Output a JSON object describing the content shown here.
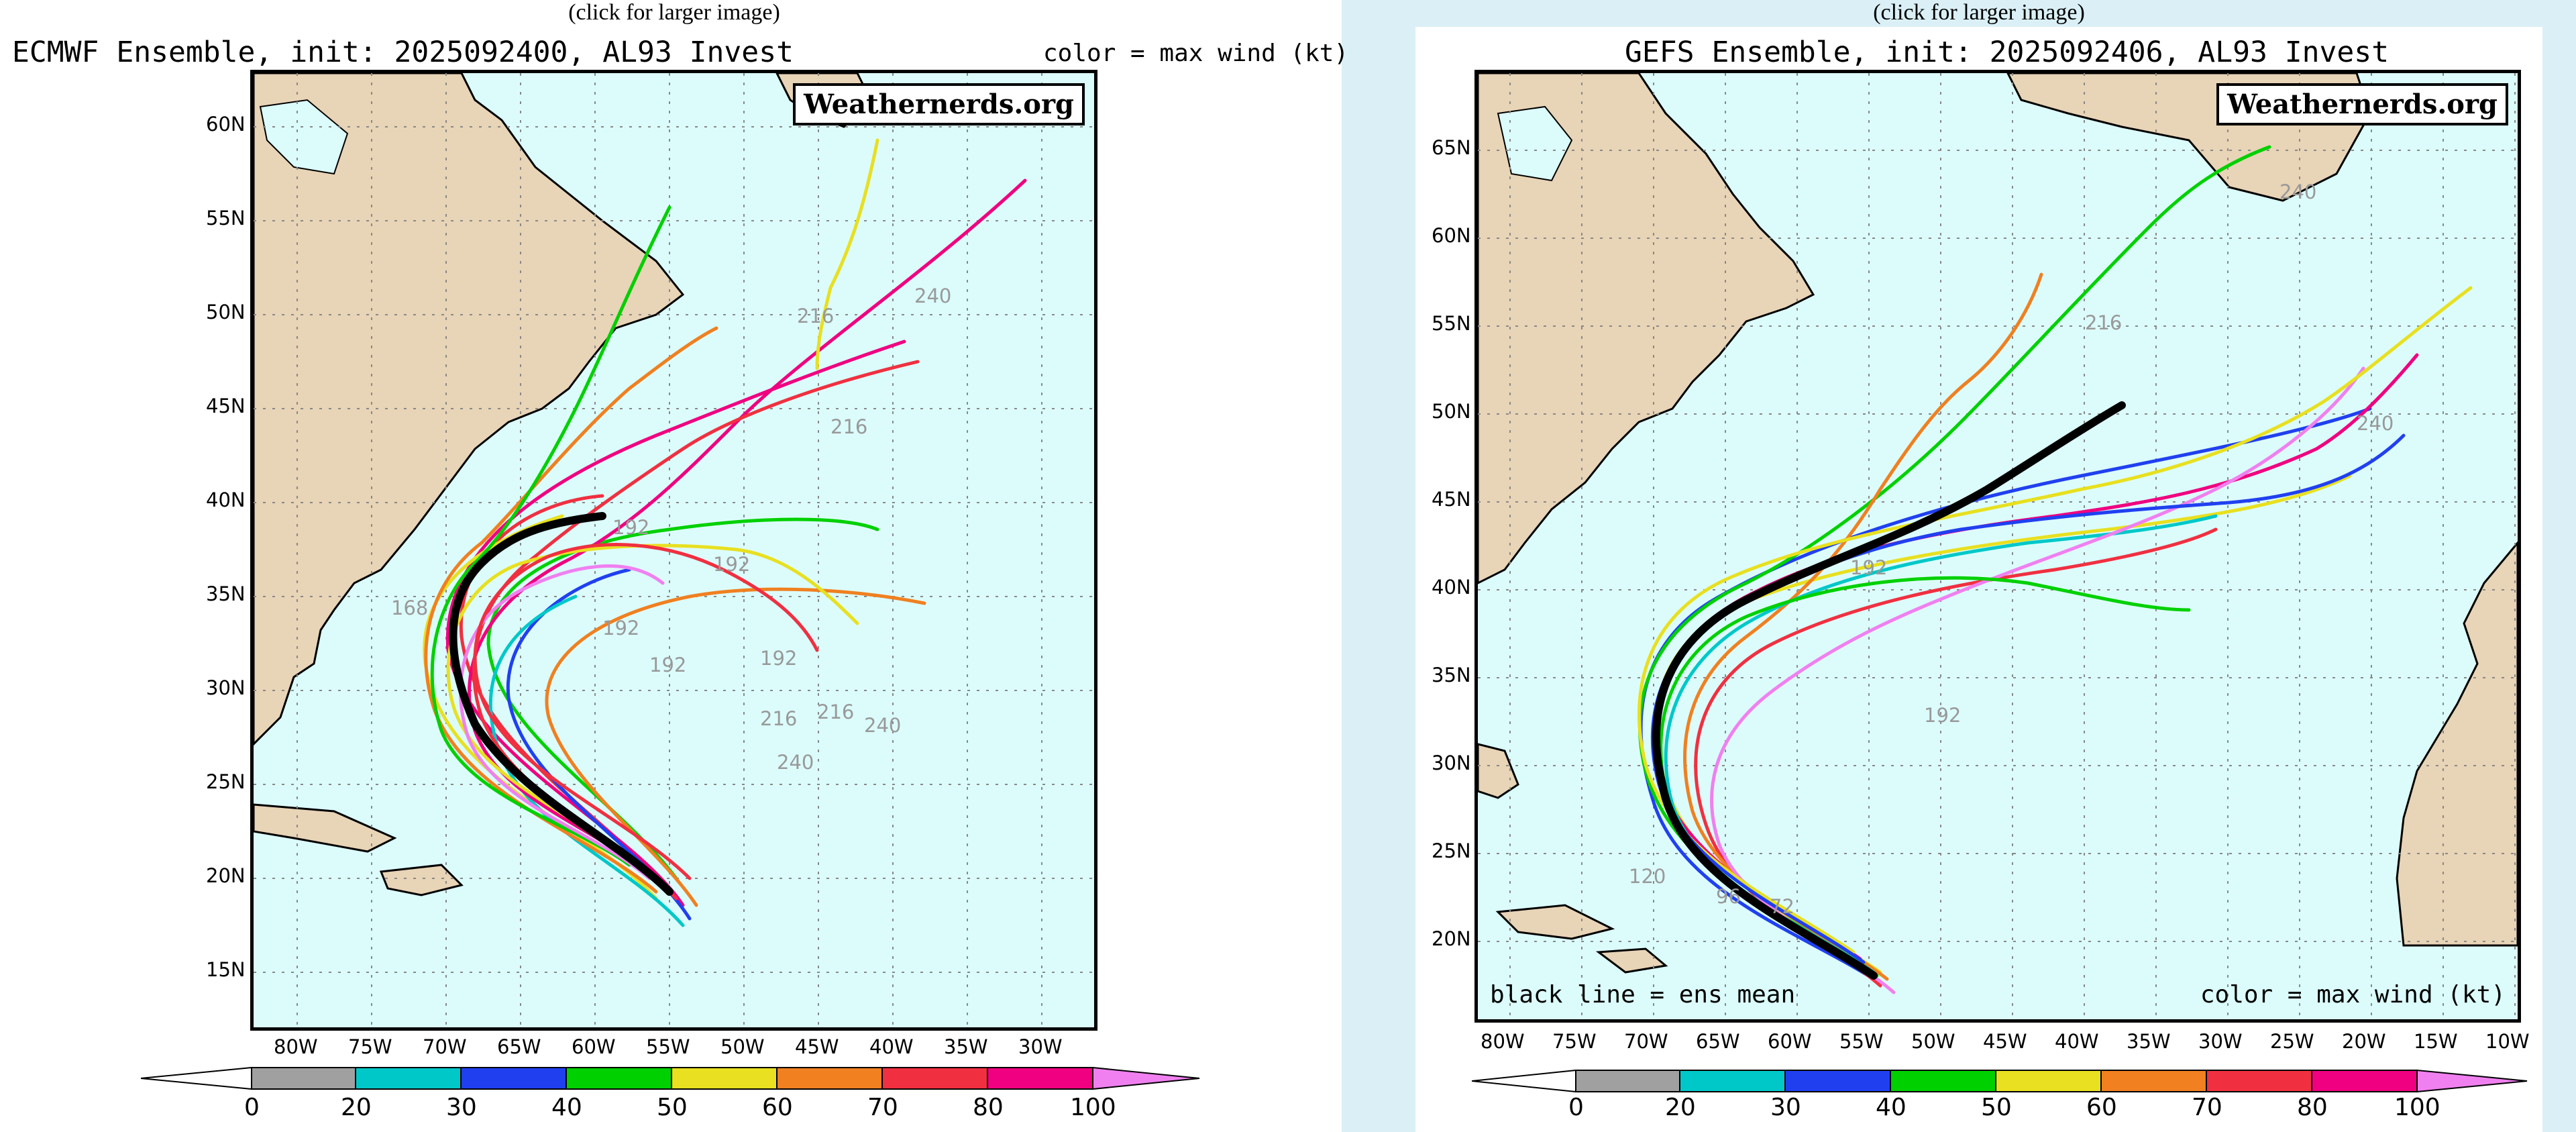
{
  "colors": {
    "page_bg": "#ffffff",
    "right_bg": "#daf0f6",
    "ocean": "#dcfcfc",
    "land": "#e8d4b6",
    "coast": "#000000",
    "grid": "#888888"
  },
  "icons": [
    "colorbar-arrow-left-icon",
    "colorbar-arrow-right-icon"
  ],
  "panels": [
    {
      "caption": "(click for larger image)",
      "title": "ECMWF Ensemble, init: 2025092400, AL93 Invest",
      "color_note": "color = max wind (kt)",
      "logo": "Weathernerds.org",
      "lat_labels": [
        "60N",
        "55N",
        "50N",
        "45N",
        "40N",
        "35N",
        "30N",
        "25N",
        "20N",
        "15N"
      ],
      "lon_labels": [
        "80W",
        "75W",
        "70W",
        "65W",
        "60W",
        "55W",
        "50W",
        "45W",
        "40W",
        "35W",
        "30W"
      ],
      "hour_labels": [
        "216",
        "240",
        "216",
        "192",
        "168",
        "192",
        "192",
        "192",
        "192",
        "216",
        "216",
        "240",
        "240"
      ]
    },
    {
      "caption": "(click for larger image)",
      "title": "GEFS Ensemble, init: 2025092406, AL93 Invest",
      "color_note": "color = max wind (kt)",
      "mean_note": "black line = ens mean",
      "logo": "Weathernerds.org",
      "lat_labels": [
        "65N",
        "60N",
        "55N",
        "50N",
        "45N",
        "40N",
        "35N",
        "30N",
        "25N",
        "20N"
      ],
      "lon_labels": [
        "80W",
        "75W",
        "70W",
        "65W",
        "60W",
        "55W",
        "50W",
        "45W",
        "40W",
        "35W",
        "30W",
        "25W",
        "20W",
        "15W",
        "10W"
      ],
      "hour_labels": [
        "240",
        "216",
        "240",
        "192",
        "192",
        "120",
        "96",
        "72"
      ]
    }
  ],
  "colorbar": {
    "ticks": [
      "0",
      "20",
      "30",
      "40",
      "50",
      "60",
      "70",
      "80",
      "100"
    ],
    "colors": [
      "#a0a0a0",
      "#00c8c8",
      "#2040f0",
      "#00d000",
      "#e8e020",
      "#f08020",
      "#f03040",
      "#f00080"
    ],
    "over_color": "#f080f0"
  }
}
